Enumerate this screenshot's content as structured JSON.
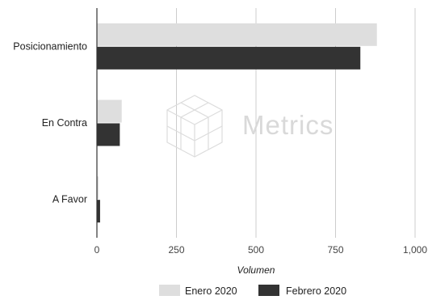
{
  "watermark": {
    "text": "Metrics"
  },
  "chart_data": {
    "type": "bar",
    "orientation": "horizontal",
    "categories": [
      "Posicionamiento",
      "En Contra",
      "A Favor"
    ],
    "series": [
      {
        "name": "Enero 2020",
        "values": [
          880,
          78,
          5
        ],
        "color": "#dedede"
      },
      {
        "name": "Febrero 2020",
        "values": [
          828,
          72,
          10
        ],
        "color": "#333333"
      }
    ],
    "xlabel": "Volumen",
    "ylabel": "",
    "xlim": [
      0,
      1000
    ],
    "x_ticks": [
      0,
      250,
      500,
      750,
      1000
    ],
    "x_tick_labels": [
      "0",
      "250",
      "500",
      "750",
      "1,000"
    ],
    "grid": true,
    "legend_position": "bottom"
  }
}
